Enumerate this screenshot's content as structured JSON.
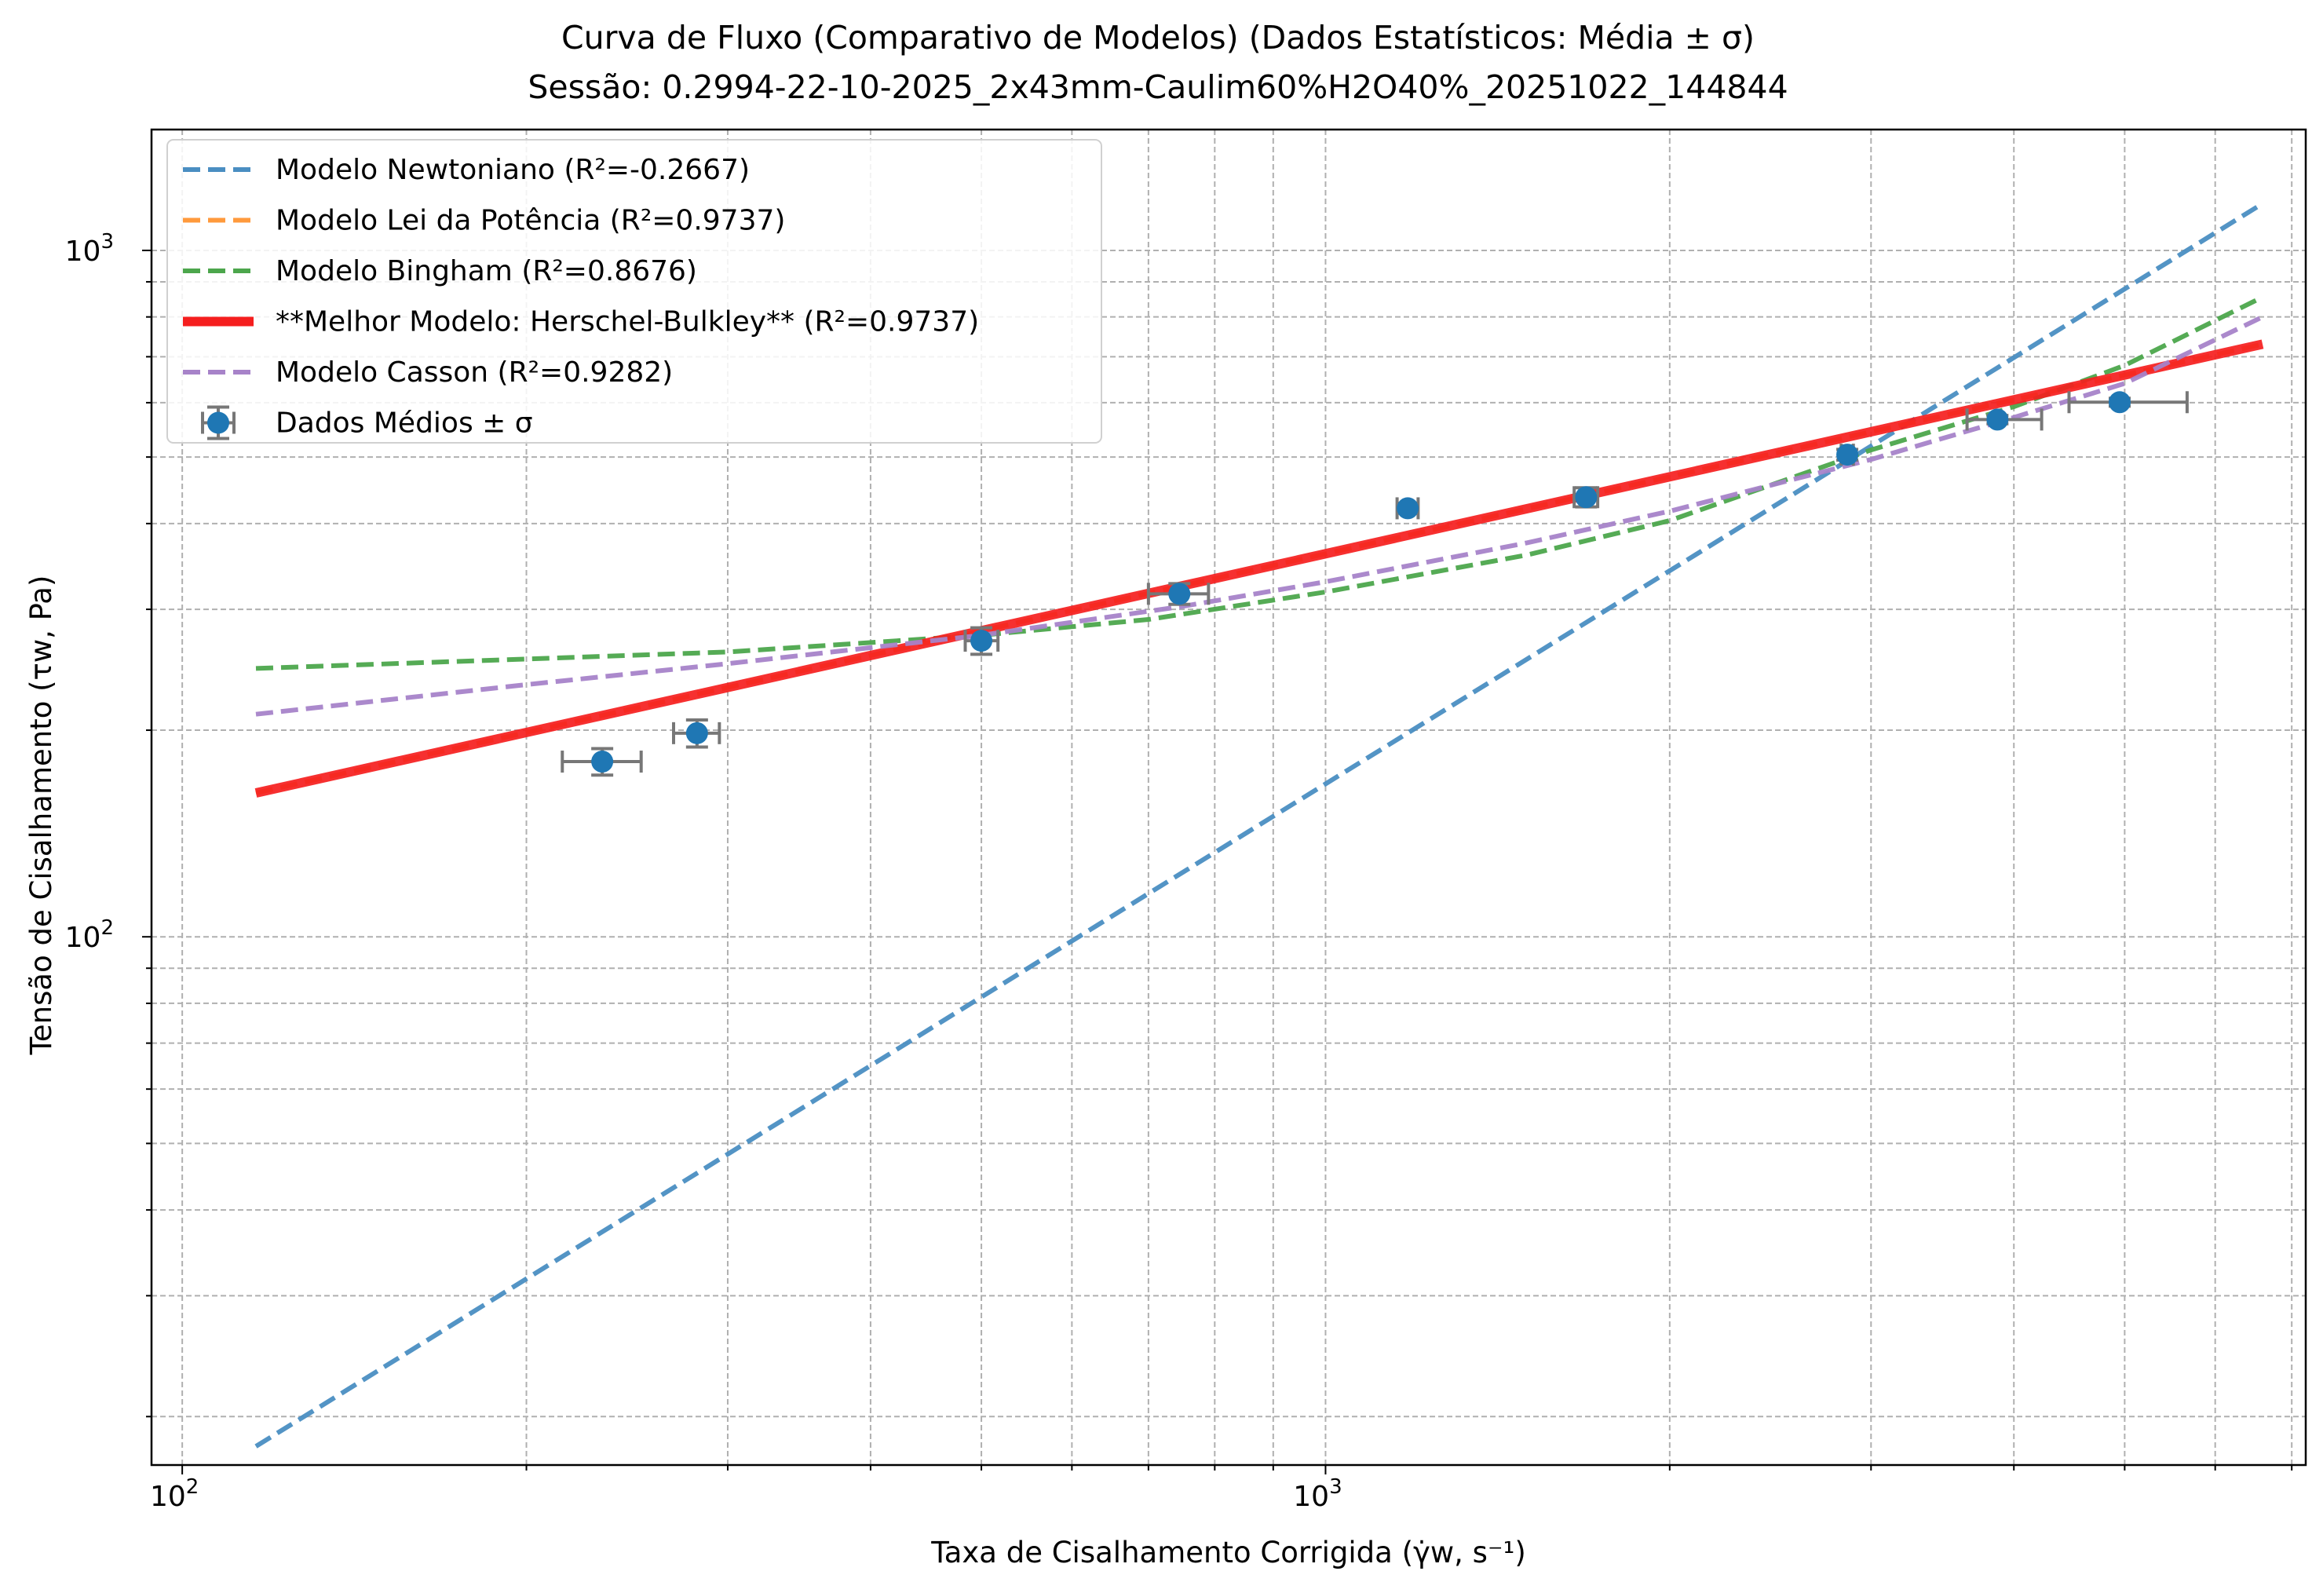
{
  "chart_data": {
    "type": "scatter",
    "title": "Curva de Fluxo (Comparativo de Modelos) (Dados Estatísticos: Média ± σ)",
    "subtitle": "Sessão: 0.2994-22-10-2025_2x43mm-Caulim60%H2O40%_20251022_144844",
    "xlabel": "Taxa de Cisalhamento Corrigida (γ̇w, s⁻¹)",
    "ylabel": "Tensão de Cisalhamento (τw, Pa)",
    "xscale": "log",
    "yscale": "log",
    "xlim": [
      94,
      7200
    ],
    "ylim": [
      17,
      1500
    ],
    "grid": true,
    "legend_position": "upper left",
    "x_tick_labels": [
      "10",
      "10"
    ],
    "x_tick_exponents": [
      "2",
      "3"
    ],
    "y_tick_labels": [
      "10",
      "10"
    ],
    "y_tick_exponents": [
      "2",
      "3"
    ],
    "series": [
      {
        "name": "Modelo Newtoniano (R²=-0.2667)",
        "kind": "line",
        "style": "dashed",
        "color": "#4a8ec2",
        "x": [
          116,
          6600
        ],
        "y": [
          18.1,
          1170
        ]
      },
      {
        "name": "Modelo Lei da Potência (R²=0.9737)",
        "kind": "line",
        "style": "dashed",
        "color": "#ff9a3c",
        "x": [
          116,
          6600
        ],
        "y": [
          162,
          730
        ]
      },
      {
        "name": "Modelo Bingham (R²=0.8676)",
        "kind": "line",
        "style": "dashed",
        "color": "#4ca64c",
        "x": [
          116,
          300,
          500,
          700,
          1000,
          1500,
          2000,
          3000,
          4000,
          5000,
          6600
        ],
        "y": [
          246,
          260,
          275,
          290,
          318,
          360,
          404,
          512,
          592,
          680,
          855
        ]
      },
      {
        "name": "**Melhor Modelo: Herschel-Bulkley** (R²=0.9737)",
        "kind": "line",
        "style": "solid",
        "color": "#f51e1e",
        "x": [
          116,
          6600
        ],
        "y": [
          162,
          730
        ]
      },
      {
        "name": "Modelo Casson (R²=0.9282)",
        "kind": "line",
        "style": "dashed",
        "color": "#a783c9",
        "x": [
          116,
          200,
          300,
          500,
          750,
          1000,
          1500,
          2000,
          3000,
          4000,
          5000,
          6600
        ],
        "y": [
          211,
          233,
          250,
          275,
          303,
          329,
          375,
          417,
          496,
          571,
          640,
          800
        ]
      },
      {
        "name": "Dados Médios ± σ",
        "kind": "errorbar",
        "color": "#1f77b4",
        "ecolor": "#777777",
        "x": [
          233,
          282,
          500,
          745,
          1180,
          1690,
          2860,
          3870,
          4950
        ],
        "y": [
          180,
          198,
          270,
          316,
          421,
          437,
          504,
          567,
          601
        ],
        "x_err_low": [
          18,
          13,
          16,
          45,
          25,
          40,
          35,
          230,
          480
        ],
        "x_err_high": [
          19,
          13,
          17,
          45,
          25,
          40,
          35,
          360,
          720
        ],
        "y_err_low": [
          8,
          9,
          12,
          11,
          7,
          14,
          9,
          8,
          8
        ],
        "y_err_high": [
          8,
          9,
          12,
          11,
          7,
          14,
          9,
          8,
          8
        ]
      }
    ]
  }
}
